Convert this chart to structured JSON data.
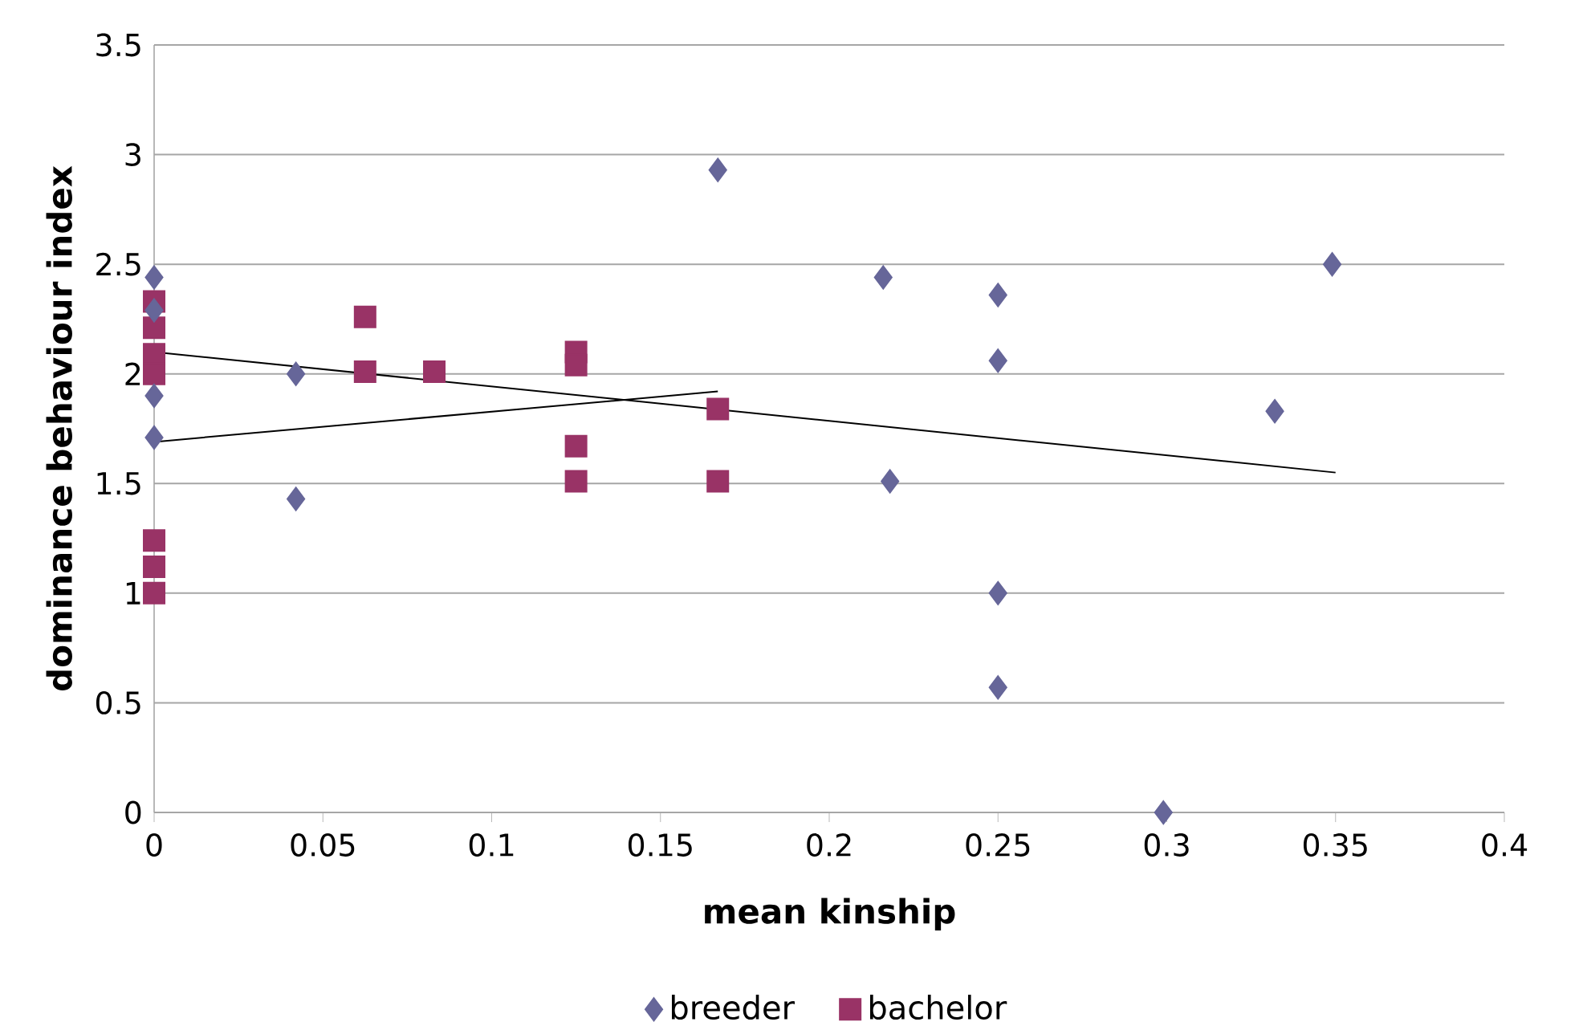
{
  "chart_data": {
    "type": "scatter",
    "xlabel": "mean kinship",
    "ylabel": "dominance behaviour index",
    "xlim": [
      0,
      0.4
    ],
    "xticks": [
      0,
      0.05,
      0.1,
      0.15,
      0.2,
      0.25,
      0.3,
      0.35,
      0.4
    ],
    "ylim": [
      0,
      3.5
    ],
    "yticks": [
      0,
      0.5,
      1,
      1.5,
      2,
      2.5,
      3,
      3.5
    ],
    "grid": "y",
    "legend": "bottom",
    "series": [
      {
        "name": "breeder",
        "color": "#666699",
        "marker": "diamond",
        "x": [
          0,
          0,
          0,
          0,
          0.042,
          0.042,
          0.167,
          0.216,
          0.218,
          0.25,
          0.25,
          0.25,
          0.25,
          0.299,
          0.332,
          0.349
        ],
        "values": [
          2.44,
          2.29,
          1.9,
          1.71,
          2.0,
          1.43,
          2.93,
          2.44,
          1.51,
          2.36,
          2.06,
          1.0,
          0.57,
          0,
          1.83,
          2.5
        ]
      },
      {
        "name": "bachelor",
        "color": "#993366",
        "marker": "square",
        "x": [
          0,
          0,
          0,
          0,
          0,
          0,
          0,
          0.0625,
          0.0625,
          0.083,
          0.125,
          0.125,
          0.125,
          0.125,
          0.167,
          0.167
        ],
        "values": [
          2.33,
          2.21,
          2.09,
          2.0,
          1.24,
          1.12,
          1.0,
          2.26,
          2.01,
          2.01,
          2.1,
          2.04,
          1.67,
          1.51,
          1.84,
          1.51
        ]
      },
      {
        "type": "line",
        "color": "#000000",
        "marker": "none",
        "x": [
          0,
          0.35
        ],
        "values": [
          2.1,
          1.55
        ]
      },
      {
        "type": "line",
        "color": "#000000",
        "marker": "none",
        "x": [
          0,
          0.167
        ],
        "values": [
          1.69,
          1.92
        ]
      }
    ]
  }
}
